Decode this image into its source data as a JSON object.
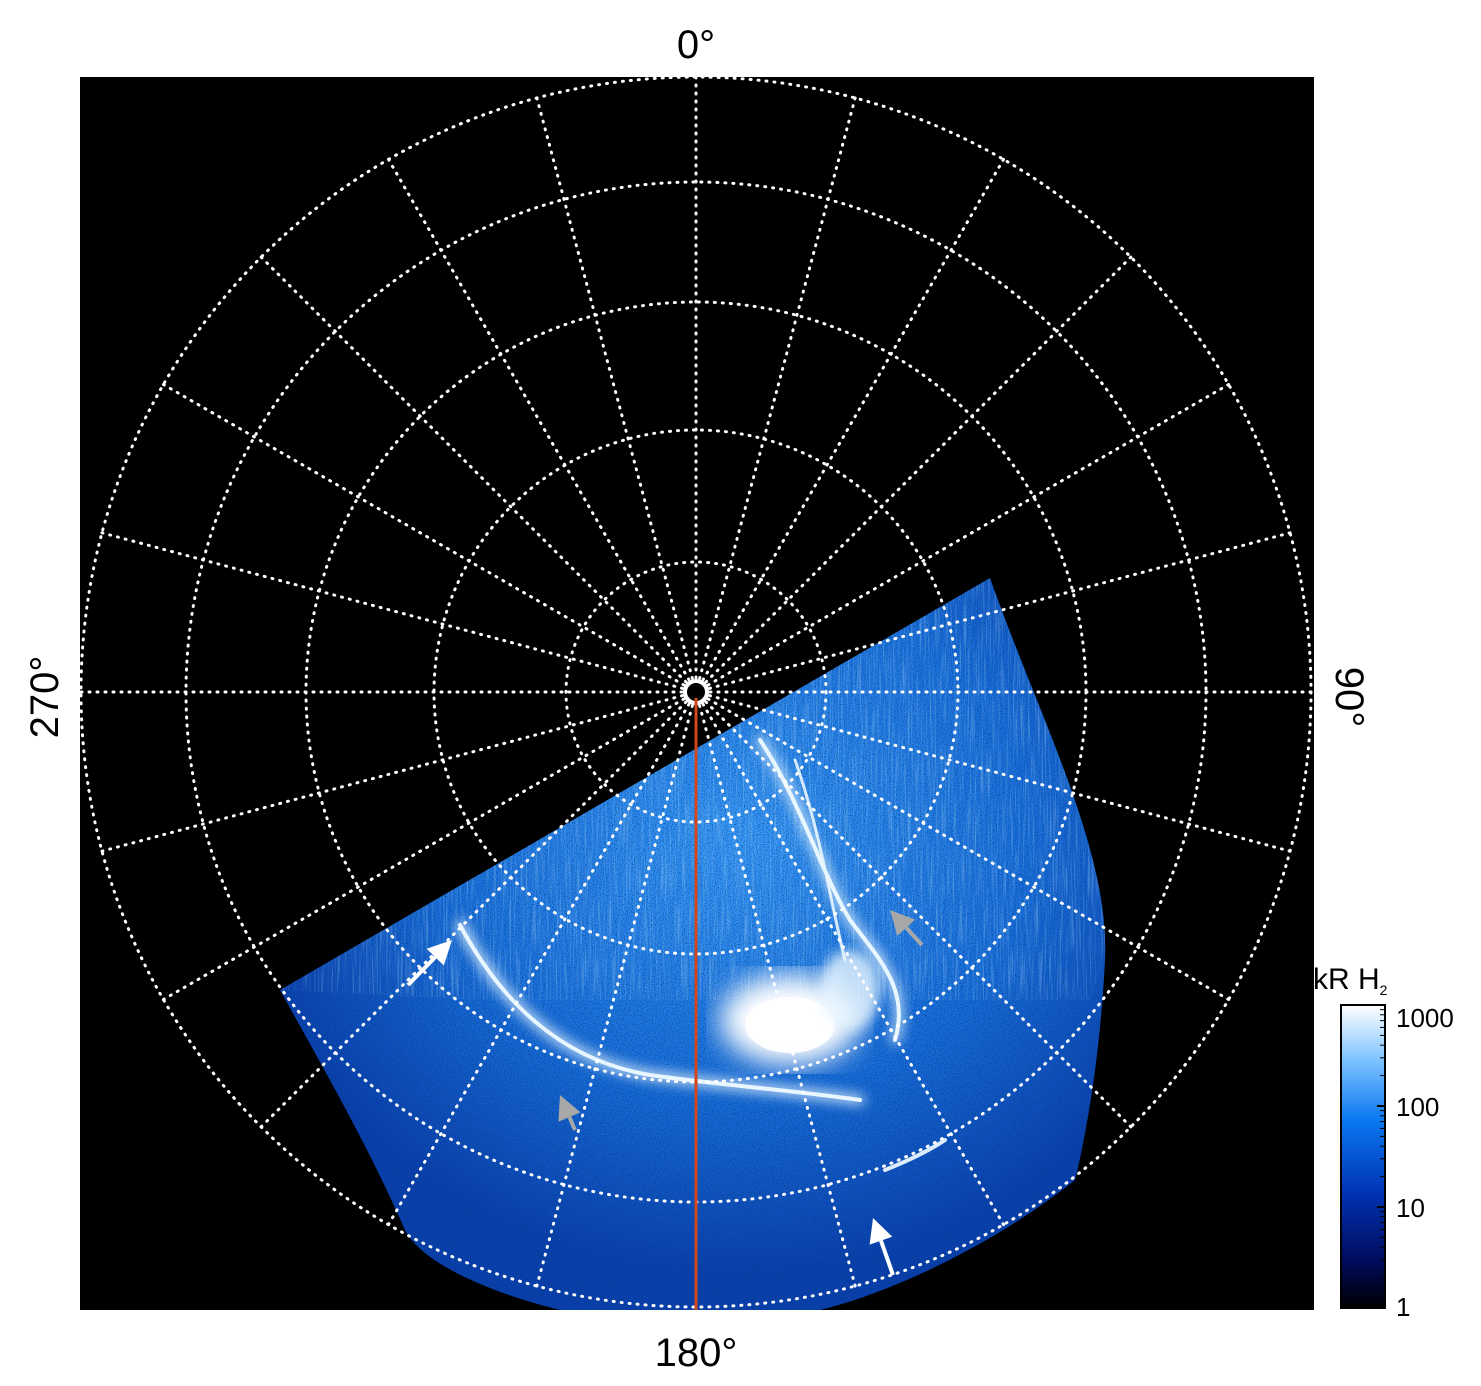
{
  "chart_data": {
    "type": "heatmap",
    "projection": "polar",
    "title": "",
    "azimuth_labels": {
      "top": "0°",
      "right": "90°",
      "bottom": "180°",
      "left": "270°"
    },
    "colorbar": {
      "title_main": "kR H",
      "title_sub": "2",
      "scale": "log",
      "range": [
        1,
        1000
      ],
      "ticks": [
        "1",
        "10",
        "100",
        "1000"
      ],
      "colors": [
        "#000000",
        "#000a5a",
        "#0033b4",
        "#0a78f0",
        "#7ec3ff",
        "#ffffff"
      ]
    },
    "grid": true,
    "meridian_line_color": "#d2461e",
    "arrow_colors": {
      "white": "#ffffff",
      "gray": "#a8a8a8"
    },
    "annotations": [
      {
        "type": "arrow",
        "color": "white"
      },
      {
        "type": "arrow",
        "color": "white"
      },
      {
        "type": "arrow",
        "color": "gray"
      },
      {
        "type": "arrow",
        "color": "gray"
      }
    ]
  }
}
